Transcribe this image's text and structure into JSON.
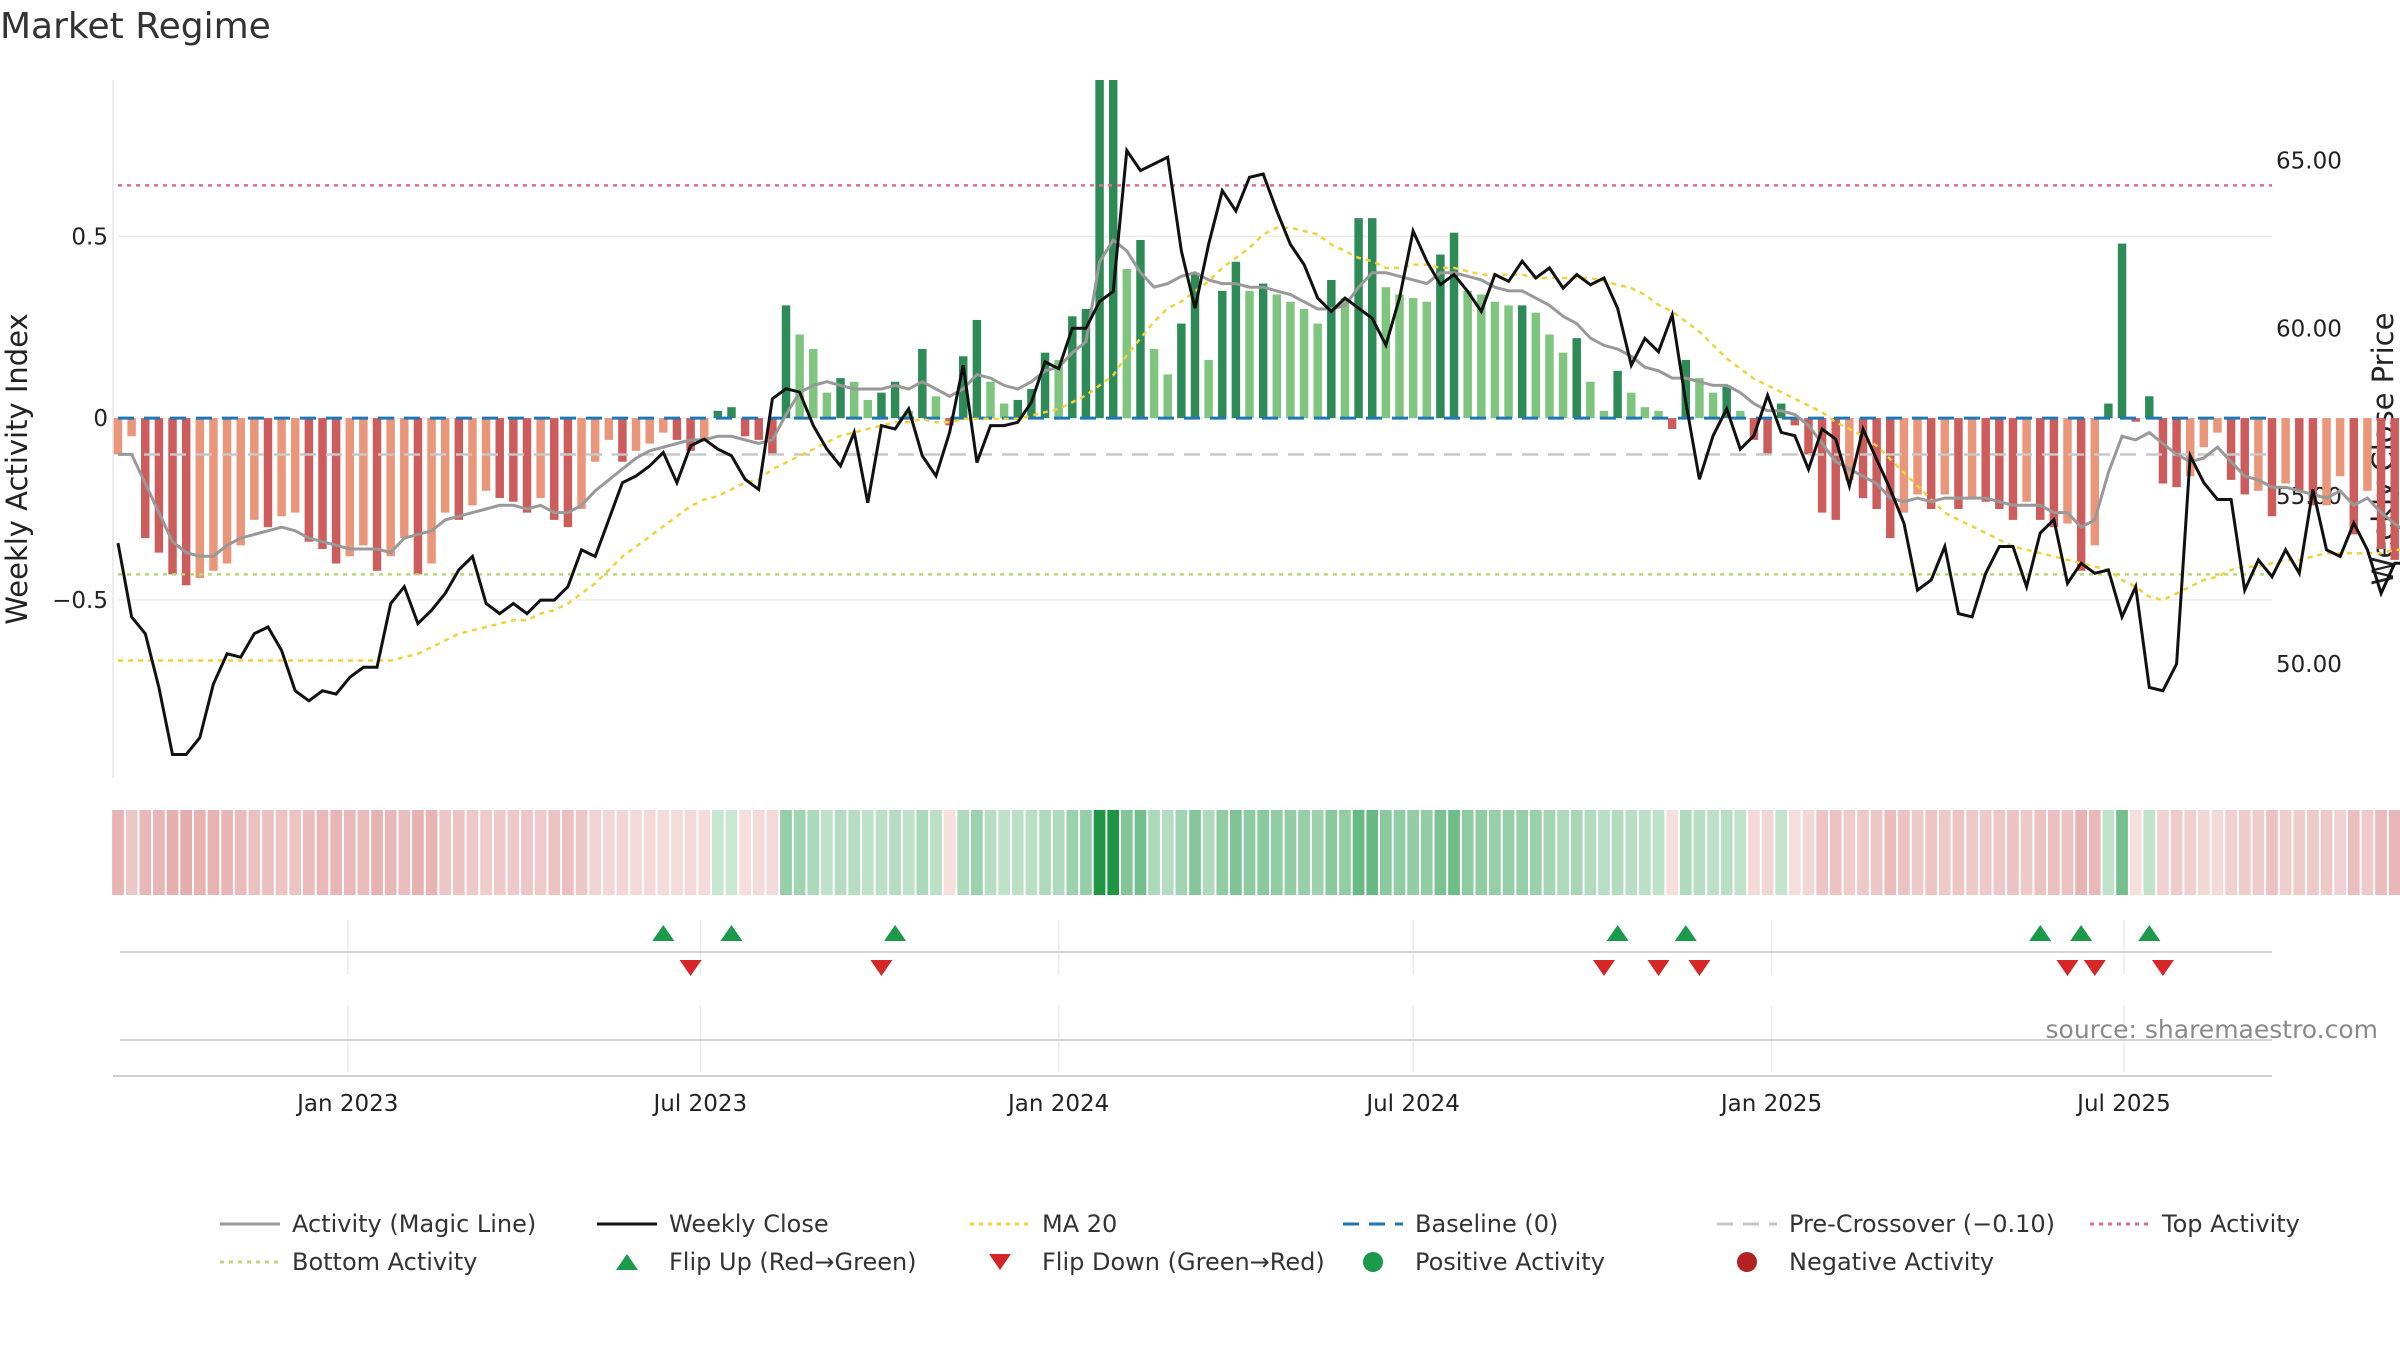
{
  "chart_data": {
    "type": "bar",
    "title": "Market Regime",
    "ylabel_left": "Weekly Activity Index",
    "ylabel_right": "Weekly Close Price",
    "source": "source: sharemaestro.com",
    "x_ticks": [
      "Jan 2023",
      "Jul 2023",
      "Jan 2024",
      "Jul 2024",
      "Jan 2025",
      "Jul 2025"
    ],
    "x_tick_dates": [
      "2023-01-01",
      "2023-07-01",
      "2024-01-01",
      "2024-07-01",
      "2025-01-01",
      "2025-07-01"
    ],
    "x_range": [
      "2022-09-05",
      "2025-09-15"
    ],
    "y_left_ticks": [
      0.5,
      0,
      -0.5
    ],
    "y_left_tick_labels": [
      "0.5",
      "0",
      "−0.5"
    ],
    "y_left_range": [
      -0.99,
      0.93
    ],
    "y_right_ticks": [
      65,
      60,
      55,
      50
    ],
    "y_right_tick_labels": [
      "65.00",
      "60.00",
      "55.00",
      "50.00"
    ],
    "y_right_range": [
      46.6,
      67.4
    ],
    "top_activity": 0.64,
    "bottom_activity": -0.43,
    "pre_crossover": -0.1,
    "baseline": 0,
    "start_date": "2022-09-05",
    "activity": [
      -0.1,
      -0.05,
      -0.33,
      -0.37,
      -0.43,
      -0.46,
      -0.44,
      -0.42,
      -0.4,
      -0.35,
      -0.28,
      -0.3,
      -0.27,
      -0.26,
      -0.34,
      -0.36,
      -0.4,
      -0.38,
      -0.35,
      -0.42,
      -0.38,
      -0.33,
      -0.43,
      -0.4,
      -0.26,
      -0.28,
      -0.24,
      -0.2,
      -0.22,
      -0.23,
      -0.26,
      -0.22,
      -0.28,
      -0.3,
      -0.25,
      -0.12,
      -0.06,
      -0.12,
      -0.09,
      -0.07,
      -0.04,
      -0.06,
      -0.09,
      -0.06,
      0.02,
      0.03,
      -0.05,
      -0.06,
      -0.1,
      0.31,
      0.23,
      0.19,
      0.07,
      0.11,
      0.1,
      0.05,
      0.07,
      0.1,
      0.02,
      0.19,
      0.06,
      -0.02,
      0.17,
      0.27,
      0.1,
      0.04,
      0.05,
      0.08,
      0.18,
      0.16,
      0.28,
      0.3,
      0.93,
      0.93,
      0.41,
      0.49,
      0.19,
      0.12,
      0.26,
      0.4,
      0.16,
      0.35,
      0.43,
      0.35,
      0.37,
      0.34,
      0.32,
      0.3,
      0.26,
      0.38,
      0.33,
      0.55,
      0.55,
      0.36,
      0.34,
      0.33,
      0.32,
      0.45,
      0.51,
      0.35,
      0.34,
      0.32,
      0.31,
      0.31,
      0.29,
      0.23,
      0.18,
      0.22,
      0.1,
      0.02,
      0.13,
      0.07,
      0.03,
      0.02,
      -0.03,
      0.16,
      0.11,
      0.07,
      0.09,
      0.02,
      -0.06,
      -0.1,
      0.04,
      -0.02,
      -0.1,
      -0.26,
      -0.28,
      -0.17,
      -0.22,
      -0.25,
      -0.33,
      -0.26,
      -0.21,
      -0.25,
      -0.21,
      -0.25,
      -0.22,
      -0.23,
      -0.25,
      -0.28,
      -0.23,
      -0.28,
      -0.3,
      -0.29,
      -0.42,
      -0.35,
      0.04,
      0.48,
      -0.01,
      0.06,
      -0.18,
      -0.19,
      -0.16,
      -0.08,
      -0.04,
      -0.17,
      -0.21,
      -0.2,
      -0.27,
      -0.18,
      -0.2,
      -0.24,
      -0.24,
      -0.16,
      -0.32,
      -0.2,
      -0.36,
      -0.39,
      -0.41
    ],
    "activity_line": [
      -0.1,
      -0.1,
      -0.18,
      -0.26,
      -0.34,
      -0.37,
      -0.38,
      -0.38,
      -0.35,
      -0.33,
      -0.32,
      -0.31,
      -0.3,
      -0.31,
      -0.33,
      -0.34,
      -0.35,
      -0.36,
      -0.36,
      -0.36,
      -0.37,
      -0.33,
      -0.32,
      -0.31,
      -0.28,
      -0.27,
      -0.26,
      -0.25,
      -0.24,
      -0.24,
      -0.25,
      -0.24,
      -0.26,
      -0.26,
      -0.24,
      -0.2,
      -0.17,
      -0.14,
      -0.11,
      -0.09,
      -0.08,
      -0.07,
      -0.06,
      -0.06,
      -0.05,
      -0.05,
      -0.06,
      -0.07,
      -0.06,
      0.01,
      0.07,
      0.09,
      0.1,
      0.09,
      0.08,
      0.08,
      0.08,
      0.09,
      0.08,
      0.1,
      0.08,
      0.06,
      0.08,
      0.12,
      0.11,
      0.09,
      0.08,
      0.1,
      0.13,
      0.14,
      0.18,
      0.21,
      0.43,
      0.49,
      0.46,
      0.4,
      0.36,
      0.37,
      0.39,
      0.4,
      0.38,
      0.37,
      0.37,
      0.36,
      0.36,
      0.35,
      0.34,
      0.32,
      0.3,
      0.3,
      0.31,
      0.36,
      0.4,
      0.4,
      0.39,
      0.38,
      0.37,
      0.4,
      0.4,
      0.39,
      0.38,
      0.36,
      0.35,
      0.35,
      0.33,
      0.31,
      0.28,
      0.26,
      0.22,
      0.2,
      0.19,
      0.17,
      0.14,
      0.13,
      0.11,
      0.11,
      0.1,
      0.09,
      0.09,
      0.07,
      0.04,
      0.02,
      0.02,
      0.01,
      -0.02,
      -0.07,
      -0.12,
      -0.14,
      -0.16,
      -0.18,
      -0.22,
      -0.23,
      -0.22,
      -0.23,
      -0.22,
      -0.22,
      -0.22,
      -0.22,
      -0.23,
      -0.24,
      -0.24,
      -0.24,
      -0.26,
      -0.26,
      -0.3,
      -0.28,
      -0.15,
      -0.05,
      -0.06,
      -0.04,
      -0.07,
      -0.1,
      -0.12,
      -0.11,
      -0.08,
      -0.12,
      -0.16,
      -0.17,
      -0.19,
      -0.19,
      -0.2,
      -0.21,
      -0.22,
      -0.2,
      -0.24,
      -0.22,
      -0.26,
      -0.29,
      -0.32
    ],
    "weekly_close": [
      53.6,
      51.4,
      50.9,
      49.3,
      47.3,
      47.3,
      47.8,
      49.4,
      50.3,
      50.2,
      50.9,
      51.1,
      50.4,
      49.2,
      48.9,
      49.2,
      49.1,
      49.6,
      49.9,
      49.9,
      51.8,
      52.3,
      51.2,
      51.6,
      52.1,
      52.8,
      53.2,
      51.8,
      51.5,
      51.8,
      51.5,
      51.9,
      51.9,
      52.3,
      53.4,
      53.2,
      54.3,
      55.4,
      55.6,
      55.9,
      56.3,
      55.4,
      56.5,
      56.7,
      56.4,
      56.2,
      55.5,
      55.2,
      57.9,
      58.2,
      58.1,
      57.1,
      56.4,
      55.9,
      56.9,
      54.8,
      57.1,
      57.0,
      57.6,
      56.2,
      55.6,
      56.9,
      58.9,
      56.0,
      57.1,
      57.1,
      57.2,
      57.8,
      59.0,
      58.8,
      60.0,
      60.0,
      60.8,
      61.1,
      65.3,
      64.7,
      64.9,
      65.1,
      62.3,
      60.6,
      62.5,
      64.1,
      63.5,
      64.5,
      64.6,
      63.5,
      62.5,
      61.9,
      60.9,
      60.5,
      60.9,
      60.6,
      60.3,
      59.5,
      60.9,
      62.9,
      62.0,
      61.3,
      61.6,
      61.1,
      60.5,
      61.6,
      61.4,
      62.0,
      61.5,
      61.8,
      61.2,
      61.6,
      61.3,
      61.5,
      60.6,
      58.9,
      59.7,
      59.3,
      60.4,
      57.8,
      55.5,
      56.8,
      57.6,
      56.4,
      56.8,
      58.0,
      56.9,
      56.8,
      55.8,
      57.0,
      56.7,
      55.3,
      57.0,
      56.1,
      55.2,
      54.2,
      52.2,
      52.5,
      53.5,
      51.5,
      51.4,
      52.7,
      53.5,
      53.5,
      52.3,
      53.9,
      54.3,
      52.4,
      53.0,
      52.7,
      52.8,
      51.4,
      52.3,
      49.3,
      49.2,
      50.0,
      56.2,
      55.4,
      54.9,
      54.9,
      52.2,
      53.1,
      52.6,
      53.4,
      52.7,
      55.2,
      53.4,
      53.2,
      54.2,
      53.4,
      52.1,
      53.0,
      53.0,
      53.7,
      53.5,
      51.2,
      50.7,
      50.5
    ],
    "ma20": [
      50.1,
      50.1,
      50.1,
      50.1,
      50.1,
      50.1,
      50.1,
      50.1,
      50.1,
      50.1,
      50.1,
      50.1,
      50.1,
      50.1,
      50.1,
      50.1,
      50.1,
      50.1,
      50.1,
      50.1,
      50.1,
      50.2,
      50.3,
      50.5,
      50.7,
      50.9,
      51.0,
      51.1,
      51.2,
      51.3,
      51.3,
      51.5,
      51.6,
      51.8,
      52.1,
      52.4,
      52.8,
      53.2,
      53.5,
      53.8,
      54.1,
      54.4,
      54.7,
      54.9,
      55.0,
      55.2,
      55.4,
      55.5,
      55.8,
      56.0,
      56.2,
      56.4,
      56.6,
      56.8,
      56.9,
      57.0,
      57.1,
      57.2,
      57.2,
      57.3,
      57.2,
      57.2,
      57.3,
      57.3,
      57.3,
      57.3,
      57.3,
      57.4,
      57.5,
      57.6,
      57.8,
      58.0,
      58.3,
      58.6,
      59.2,
      59.7,
      60.2,
      60.6,
      60.8,
      61.1,
      61.4,
      61.8,
      62.1,
      62.4,
      62.8,
      63.0,
      63.0,
      62.9,
      62.8,
      62.5,
      62.3,
      62.1,
      62.0,
      61.8,
      61.8,
      61.9,
      61.9,
      61.8,
      61.8,
      61.7,
      61.6,
      61.6,
      61.6,
      61.6,
      61.5,
      61.5,
      61.5,
      61.5,
      61.5,
      61.4,
      61.3,
      61.2,
      61.0,
      60.7,
      60.5,
      60.2,
      59.9,
      59.5,
      59.1,
      58.8,
      58.5,
      58.3,
      58.1,
      57.9,
      57.7,
      57.5,
      57.2,
      57.0,
      56.8,
      56.5,
      56.1,
      55.7,
      55.3,
      54.9,
      54.5,
      54.3,
      54.1,
      53.9,
      53.7,
      53.5,
      53.4,
      53.3,
      53.2,
      53.1,
      53.0,
      52.9,
      52.8,
      52.5,
      52.3,
      52.0,
      51.9,
      52.1,
      52.3,
      52.5,
      52.6,
      52.8,
      52.9,
      52.9,
      53.0,
      53.1,
      53.1,
      53.2,
      53.3,
      53.3,
      53.3,
      53.3,
      53.3,
      53.4,
      53.4,
      53.3,
      53.2,
      53.0
    ],
    "heat_strip": [
      -0.41,
      -0.25,
      -0.36,
      -0.4,
      -0.45,
      -0.46,
      -0.43,
      -0.42,
      -0.4,
      -0.35,
      -0.3,
      -0.3,
      -0.28,
      -0.28,
      -0.34,
      -0.36,
      -0.4,
      -0.37,
      -0.35,
      -0.43,
      -0.38,
      -0.32,
      -0.43,
      -0.41,
      -0.25,
      -0.27,
      -0.24,
      -0.2,
      -0.23,
      -0.23,
      -0.25,
      -0.22,
      -0.28,
      -0.3,
      -0.25,
      -0.14,
      -0.12,
      -0.13,
      -0.1,
      -0.1,
      -0.08,
      -0.08,
      -0.1,
      -0.08,
      0.05,
      0.04,
      -0.06,
      -0.07,
      -0.1,
      0.31,
      0.24,
      0.2,
      0.11,
      0.15,
      0.14,
      0.11,
      0.12,
      0.15,
      0.11,
      0.2,
      0.12,
      -0.04,
      0.17,
      0.28,
      0.14,
      0.11,
      0.12,
      0.13,
      0.19,
      0.18,
      0.28,
      0.31,
      0.93,
      0.93,
      0.41,
      0.48,
      0.2,
      0.15,
      0.26,
      0.39,
      0.18,
      0.34,
      0.43,
      0.35,
      0.37,
      0.34,
      0.32,
      0.3,
      0.27,
      0.37,
      0.33,
      0.55,
      0.55,
      0.36,
      0.34,
      0.33,
      0.32,
      0.45,
      0.5,
      0.35,
      0.34,
      0.31,
      0.31,
      0.3,
      0.29,
      0.23,
      0.19,
      0.22,
      0.16,
      0.13,
      0.16,
      0.13,
      0.12,
      0.1,
      -0.04,
      0.17,
      0.14,
      0.12,
      0.13,
      0.09,
      -0.1,
      -0.12,
      0.07,
      -0.06,
      -0.12,
      -0.26,
      -0.28,
      -0.2,
      -0.23,
      -0.25,
      -0.33,
      -0.27,
      -0.23,
      -0.26,
      -0.23,
      -0.26,
      -0.23,
      -0.24,
      -0.25,
      -0.28,
      -0.24,
      -0.28,
      -0.3,
      -0.29,
      -0.41,
      -0.36,
      0.09,
      0.48,
      -0.04,
      0.09,
      -0.18,
      -0.2,
      -0.18,
      -0.12,
      -0.09,
      -0.18,
      -0.21,
      -0.2,
      -0.27,
      -0.19,
      -0.2,
      -0.24,
      -0.24,
      -0.18,
      -0.32,
      -0.22,
      -0.35,
      -0.38,
      -0.41
    ],
    "flip_up_dates": [
      "2023-06-12",
      "2023-07-17",
      "2023-10-09",
      "2024-10-14",
      "2024-11-18",
      "2025-05-19",
      "2025-06-09",
      "2025-07-14"
    ],
    "flip_down_dates": [
      "2023-06-26",
      "2023-10-02",
      "2024-10-07",
      "2024-11-04",
      "2024-11-25",
      "2025-06-02",
      "2025-06-16",
      "2025-07-21"
    ],
    "colors": {
      "green_strong": "#2e8b57",
      "green_light": "#7fc47f",
      "red_strong": "#cd5c5c",
      "red_light": "#e9967a",
      "activity_line": "#999999",
      "close_line": "#111111",
      "ma20": "#f2d13a",
      "baseline": "#1f77b4",
      "pre_crossover": "#c8c8c8",
      "top_activity": "#e06c86",
      "bottom_activity": "#b9d878",
      "flip_up": "#1a9a4a",
      "flip_down": "#d62728",
      "positive": "#1a9a4a",
      "negative": "#b22222"
    },
    "legend": {
      "position": "bottom",
      "items": [
        {
          "label": "Activity (Magic Line)",
          "kind": "line",
          "color": "#999999",
          "dash": "solid"
        },
        {
          "label": "Weekly Close",
          "kind": "line",
          "color": "#111111",
          "dash": "solid"
        },
        {
          "label": "MA 20",
          "kind": "line",
          "color": "#f2d13a",
          "dash": "dotted"
        },
        {
          "label": "Baseline (0)",
          "kind": "line",
          "color": "#1f77b4",
          "dash": "dashed"
        },
        {
          "label": "Pre-Crossover (−0.10)",
          "kind": "line",
          "color": "#c8c8c8",
          "dash": "dashed"
        },
        {
          "label": "Top Activity",
          "kind": "line",
          "color": "#e06c86",
          "dash": "dotted"
        },
        {
          "label": "Bottom Activity",
          "kind": "line",
          "color": "#b9d878",
          "dash": "dotted"
        },
        {
          "label": "Flip Up (Red→Green)",
          "kind": "triangle-up",
          "color": "#1a9a4a"
        },
        {
          "label": "Flip Down (Green→Red)",
          "kind": "triangle-down",
          "color": "#d62728"
        },
        {
          "label": "Positive Activity",
          "kind": "circle",
          "color": "#1a9a4a"
        },
        {
          "label": "Negative Activity",
          "kind": "circle",
          "color": "#b22222"
        }
      ]
    }
  }
}
